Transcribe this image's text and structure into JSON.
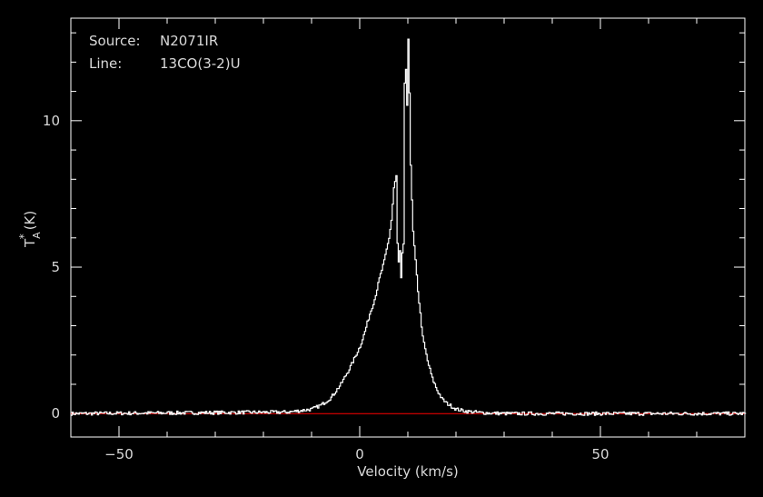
{
  "chart_data": {
    "type": "line",
    "source_label": "Source:",
    "source_value": "N2071IR",
    "line_label": "Line:",
    "line_value": "13CO(3-2)U",
    "xlabel": "Velocity (km/s)",
    "ylabel_main": "T",
    "ylabel_sup": "*",
    "ylabel_sub": "A",
    "ylabel_unit": "(K)",
    "xlim": [
      -60,
      80
    ],
    "ylim": [
      -0.8,
      13.5
    ],
    "x_ticks": [
      -50,
      0,
      50
    ],
    "x_tick_labels": [
      "−50",
      "0",
      "50"
    ],
    "y_ticks": [
      0,
      5,
      10
    ],
    "y_tick_labels": [
      "0",
      "5",
      "10"
    ],
    "baseline": 0,
    "colors": {
      "spectrum": "#ffffff",
      "baseline": "#ff0000",
      "frame": "#ffffff",
      "background": "#000000"
    },
    "series": [
      {
        "x": [
          -60,
          -15,
          -10,
          -8,
          -6,
          -4,
          -2,
          0,
          1,
          2,
          3,
          4,
          5,
          6,
          6.5,
          7,
          7.5,
          7.7,
          7.8,
          8.2,
          8.5,
          8.6,
          9.0,
          9.2,
          9.5,
          9.7,
          10.0,
          10.2,
          10.5,
          10.8,
          11.0,
          11.5,
          12,
          13,
          14,
          15,
          16,
          17,
          18,
          19,
          20,
          22,
          25,
          30,
          80
        ],
        "y": [
          0,
          0.05,
          0.15,
          0.3,
          0.55,
          1.0,
          1.6,
          2.3,
          2.8,
          3.4,
          3.9,
          4.6,
          5.2,
          6.0,
          6.6,
          7.7,
          8.1,
          7.0,
          4.6,
          5.7,
          4.6,
          5.2,
          5.8,
          11.2,
          11.7,
          10.0,
          12.8,
          11.5,
          8.5,
          7.0,
          6.2,
          5.2,
          4.2,
          2.6,
          1.8,
          1.2,
          0.8,
          0.5,
          0.35,
          0.25,
          0.15,
          0.08,
          0.03,
          0.0,
          0
        ]
      }
    ]
  }
}
